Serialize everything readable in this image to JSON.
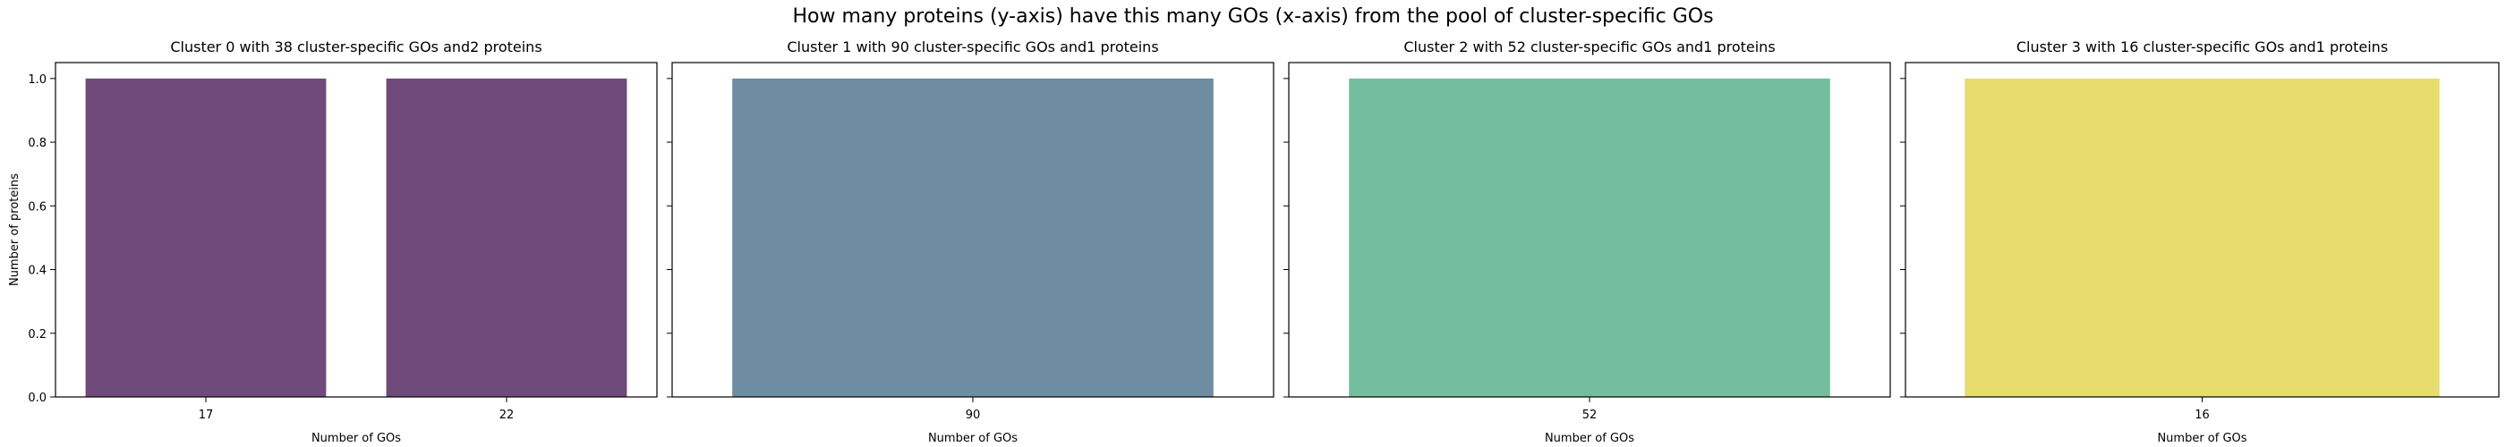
{
  "figure": {
    "suptitle": "How many proteins (y-axis) have this many GOs (x-axis) from the pool of cluster-specific GOs"
  },
  "chart_data": [
    {
      "type": "bar",
      "title": "Cluster 0 with 38 cluster-specific GOs and2 proteins",
      "categories": [
        "17",
        "22"
      ],
      "values": [
        1,
        1
      ],
      "xlabel": "Number of GOs",
      "ylabel": "Number of proteins",
      "ylim": [
        0,
        1.05
      ],
      "yticks": [
        "0.0",
        "0.2",
        "0.4",
        "0.6",
        "0.8",
        "1.0"
      ],
      "color": "#6f4a7a"
    },
    {
      "type": "bar",
      "title": "Cluster 1 with 90 cluster-specific GOs and1 proteins",
      "categories": [
        "90"
      ],
      "values": [
        1
      ],
      "xlabel": "Number of GOs",
      "ylabel": "",
      "ylim": [
        0,
        1.05
      ],
      "color": "#6e8ca2"
    },
    {
      "type": "bar",
      "title": "Cluster 2 with 52 cluster-specific GOs and1 proteins",
      "categories": [
        "52"
      ],
      "values": [
        1
      ],
      "xlabel": "Number of GOs",
      "ylabel": "",
      "ylim": [
        0,
        1.05
      ],
      "color": "#74be9d"
    },
    {
      "type": "bar",
      "title": "Cluster 3 with 16 cluster-specific GOs and1 proteins",
      "categories": [
        "16"
      ],
      "values": [
        1
      ],
      "xlabel": "Number of GOs",
      "ylabel": "",
      "ylim": [
        0,
        1.05
      ],
      "color": "#e8dc6e"
    }
  ]
}
